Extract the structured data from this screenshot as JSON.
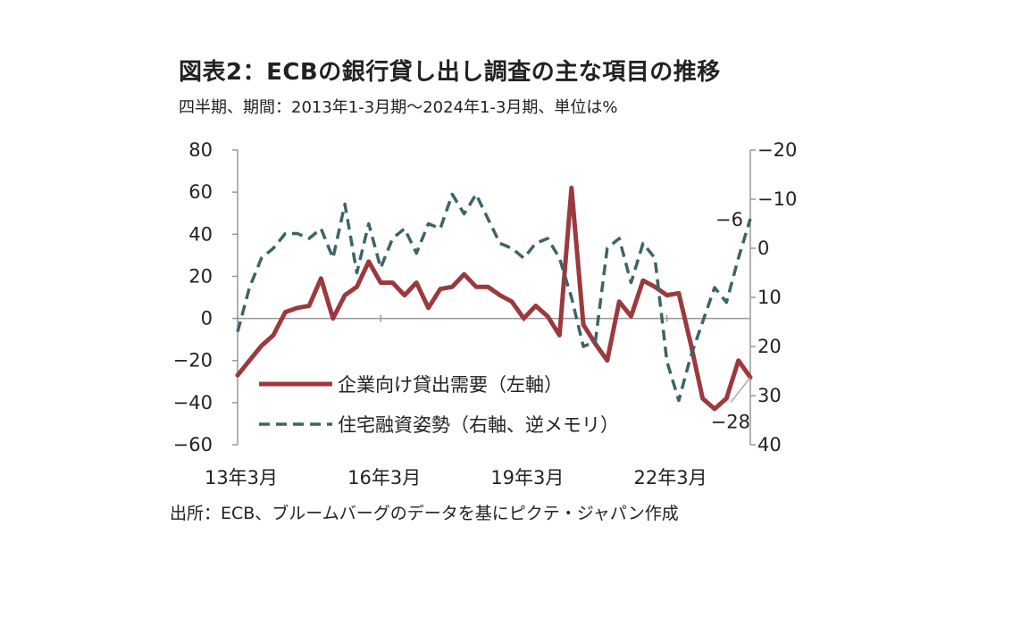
{
  "title": "図表2：ECBの銀行貸し出し調査の主な項目の推移",
  "subtitle": "四半期、期間：2013年1-3月期～2024年1-3月期、単位は%",
  "source": "出所：ECB、ブルームバーグのデータを基にピクテ・ジャパン作成",
  "chart_data": {
    "type": "line",
    "x_start": "2013年1-3月期",
    "x_end": "2024年1-3月期",
    "x_tick_labels": [
      "13年3月",
      "16年3月",
      "19年3月",
      "22年3月"
    ],
    "y_left": {
      "ylim": [
        -60,
        80
      ],
      "ticks": [
        "80",
        "60",
        "40",
        "20",
        "0",
        "-20",
        "-40",
        "-60"
      ]
    },
    "y_right": {
      "ylim": [
        -20,
        40
      ],
      "inverted": true,
      "ticks": [
        "-20",
        "-10",
        "0",
        "10",
        "20",
        "30",
        "40"
      ]
    },
    "series": [
      {
        "name": "企業向け貸出需要（左軸）",
        "axis": "left",
        "color": "#9b3a3e",
        "style": "solid",
        "values": [
          -27,
          -20,
          -13,
          -8,
          3,
          5,
          6,
          19,
          0,
          11,
          15,
          27,
          17,
          17,
          11,
          17,
          5,
          14,
          15,
          21,
          15,
          15,
          11,
          8,
          0,
          6,
          1,
          -8,
          62,
          -3,
          -12,
          -20,
          8,
          1,
          18,
          15,
          11,
          12,
          -12,
          -38,
          -43,
          -38,
          -20,
          -28
        ]
      },
      {
        "name": "住宅融資姿勢（右軸、逆メモリ）",
        "axis": "right",
        "color": "#3d6468",
        "style": "dashed",
        "values": [
          17,
          8,
          2,
          0,
          -3,
          -3,
          -2,
          -4,
          2,
          -9,
          5,
          -5,
          4,
          -2,
          -4,
          1,
          -5,
          -4,
          -11,
          -7,
          -11,
          -6,
          -1,
          0,
          2,
          -1,
          -2,
          2,
          10,
          20,
          19,
          0,
          -2,
          7,
          -1,
          2,
          23,
          31,
          22,
          15,
          8,
          11,
          2,
          -6
        ]
      }
    ],
    "annotations": [
      {
        "text": "-6",
        "series": "住宅融資姿勢（右軸、逆メモリ）"
      },
      {
        "text": "-28",
        "series": "企業向け貸出需要（左軸）"
      }
    ],
    "legend": {
      "placement": "lower-left"
    }
  }
}
